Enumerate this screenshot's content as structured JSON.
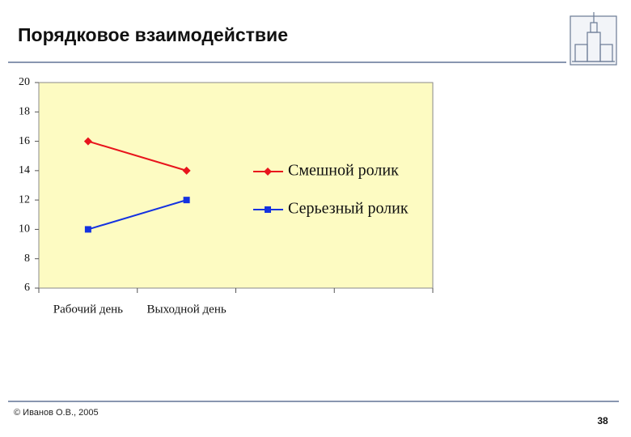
{
  "slide": {
    "title": "Порядковое взаимодействие",
    "footer": "© Иванов О.В., 2005",
    "page_number": "38"
  },
  "chart_data": {
    "type": "line",
    "categories": [
      "Рабочий день",
      "Выходной день",
      null,
      null
    ],
    "series": [
      {
        "name": "Смешной ролик",
        "color": "#e8141c",
        "marker": "diamond",
        "values": [
          16,
          14,
          null,
          null
        ]
      },
      {
        "name": "Серьезный ролик",
        "color": "#1432e0",
        "marker": "square",
        "values": [
          10,
          12,
          null,
          null
        ]
      }
    ],
    "ylim": [
      6,
      20
    ],
    "yticks": [
      6,
      8,
      10,
      12,
      14,
      16,
      18,
      20
    ],
    "grid": false,
    "legend": "right"
  }
}
